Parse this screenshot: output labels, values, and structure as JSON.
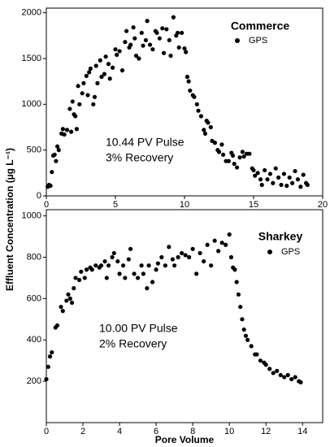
{
  "chart_data": [
    {
      "type": "scatter",
      "title": "Commerce",
      "annotations": [
        "10.44 PV Pulse",
        "3% Recovery"
      ],
      "ylabel": "Effluent Concentration (µg L⁻¹)",
      "xlim": [
        0,
        20
      ],
      "ylim": [
        0,
        2050
      ],
      "xticks": [
        0,
        5,
        10,
        15,
        20
      ],
      "yticks": [
        0,
        500,
        1000,
        1500,
        2000
      ],
      "series": [
        {
          "name": "GPS",
          "color": "#000000",
          "x": [
            0.1,
            0.2,
            0.3,
            0.4,
            0.5,
            0.6,
            0.7,
            0.8,
            0.9,
            1.1,
            1.2,
            1.3,
            1.5,
            1.7,
            1.8,
            1.9,
            2.0,
            2.1,
            2.2,
            2.3,
            2.4,
            2.6,
            2.7,
            2.9,
            3.0,
            3.1,
            3.2,
            3.4,
            3.5,
            3.6,
            3.7,
            3.9,
            4.0,
            4.2,
            4.3,
            4.5,
            4.6,
            4.8,
            5.0,
            5.1,
            5.3,
            5.5,
            5.7,
            5.8,
            6.0,
            6.1,
            6.3,
            6.4,
            6.5,
            6.7,
            6.9,
            7.0,
            7.2,
            7.3,
            7.5,
            7.7,
            7.9,
            8.0,
            8.2,
            8.4,
            8.5,
            8.7,
            8.9,
            9.0,
            9.2,
            9.4,
            9.5,
            9.6,
            9.8,
            10.0,
            10.1,
            10.2,
            10.3,
            10.4,
            10.6,
            10.7,
            10.9,
            11.0,
            11.2,
            11.4,
            11.5,
            11.6,
            11.7,
            11.9,
            12.0,
            12.2,
            12.4,
            12.5,
            12.7,
            12.8,
            13.0,
            13.2,
            13.4,
            13.5,
            13.6,
            13.8,
            14.0,
            14.2,
            14.3,
            14.5,
            14.7,
            14.9,
            15.0,
            15.1,
            15.3,
            15.5,
            15.6,
            15.8,
            16.0,
            16.2,
            16.4,
            16.6,
            16.8,
            17.0,
            17.2,
            17.4,
            17.6,
            17.8,
            18.0,
            18.2,
            18.4,
            18.6,
            18.8,
            18.9
          ],
          "values": [
            100,
            120,
            110,
            260,
            440,
            450,
            380,
            540,
            500,
            680,
            730,
            670,
            720,
            950,
            700,
            1030,
            890,
            870,
            730,
            1200,
            1000,
            1120,
            1230,
            1310,
            1100,
            1350,
            1390,
            1000,
            1080,
            1420,
            1230,
            1480,
            1300,
            1330,
            1520,
            1440,
            1280,
            1400,
            1600,
            1540,
            1580,
            1370,
            1680,
            1800,
            1620,
            1650,
            1840,
            1720,
            1530,
            1500,
            1780,
            1640,
            1700,
            1910,
            1650,
            1600,
            1800,
            1780,
            1720,
            1830,
            1560,
            1820,
            1700,
            1530,
            1950,
            1750,
            1780,
            1620,
            1780,
            1610,
            1570,
            1300,
            1250,
            1150,
            1100,
            1080,
            1000,
            930,
            870,
            720,
            680,
            820,
            800,
            750,
            600,
            580,
            500,
            480,
            560,
            450,
            380,
            380,
            470,
            440,
            350,
            310,
            420,
            480,
            430,
            460,
            460,
            300,
            280,
            220,
            250,
            180,
            120,
            280,
            180,
            240,
            140,
            300,
            200,
            120,
            240,
            110,
            200,
            140,
            270,
            180,
            100,
            230,
            140,
            120
          ]
        }
      ]
    },
    {
      "type": "scatter",
      "title": "Sharkey",
      "annotations": [
        "10.00 PV Pulse",
        "2% Recovery"
      ],
      "xlabel": "Pore Volume",
      "xlim": [
        0,
        15.1
      ],
      "ylim": [
        0,
        1030
      ],
      "xticks": [
        0,
        2,
        4,
        6,
        8,
        10,
        12,
        14
      ],
      "yticks": [
        200,
        400,
        600,
        800,
        1000
      ],
      "series": [
        {
          "name": "GPS",
          "color": "#000000",
          "x": [
            0.0,
            0.1,
            0.2,
            0.3,
            0.5,
            0.6,
            0.8,
            0.9,
            1.1,
            1.2,
            1.3,
            1.4,
            1.5,
            1.6,
            1.8,
            1.9,
            2.1,
            2.2,
            2.4,
            2.5,
            2.7,
            2.9,
            3.0,
            3.2,
            3.3,
            3.4,
            3.6,
            3.7,
            3.9,
            4.0,
            4.2,
            4.3,
            4.5,
            4.6,
            4.8,
            5.0,
            5.2,
            5.3,
            5.5,
            5.6,
            5.8,
            6.0,
            6.1,
            6.3,
            6.5,
            6.7,
            6.9,
            7.0,
            7.2,
            7.4,
            7.6,
            7.8,
            8.0,
            8.2,
            8.4,
            8.6,
            8.8,
            9.0,
            9.2,
            9.4,
            9.6,
            9.8,
            10.0,
            10.1,
            10.2,
            10.3,
            10.4,
            10.5,
            10.6,
            10.7,
            10.8,
            10.9,
            11.0,
            11.2,
            11.4,
            11.5,
            11.7,
            11.9,
            12.0,
            12.2,
            12.4,
            12.6,
            12.8,
            13.0,
            13.2,
            13.4,
            13.6,
            13.8,
            13.9
          ],
          "values": [
            210,
            270,
            320,
            340,
            460,
            470,
            560,
            540,
            590,
            620,
            600,
            580,
            650,
            700,
            690,
            730,
            700,
            740,
            750,
            740,
            760,
            750,
            760,
            780,
            700,
            760,
            800,
            820,
            780,
            720,
            760,
            700,
            790,
            840,
            720,
            700,
            760,
            720,
            650,
            760,
            680,
            740,
            770,
            800,
            760,
            850,
            790,
            760,
            800,
            820,
            810,
            800,
            840,
            720,
            820,
            780,
            860,
            760,
            880,
            830,
            870,
            860,
            910,
            800,
            750,
            740,
            680,
            620,
            560,
            500,
            450,
            420,
            400,
            370,
            330,
            330,
            300,
            290,
            280,
            260,
            240,
            250,
            230,
            220,
            230,
            210,
            220,
            200,
            195
          ]
        }
      ]
    }
  ]
}
